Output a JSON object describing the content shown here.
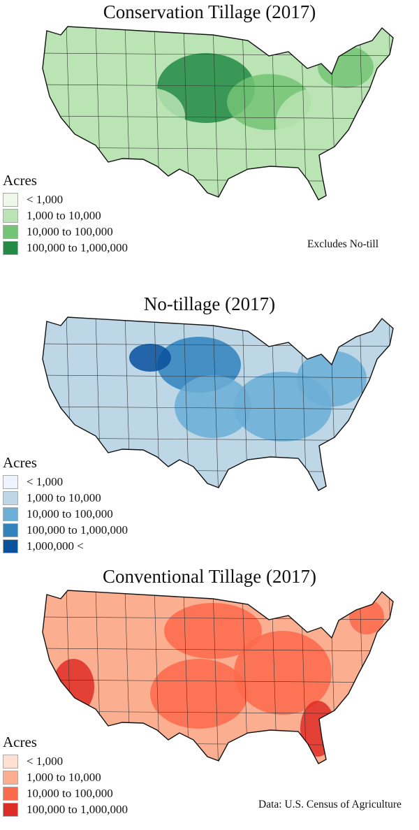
{
  "panels": [
    {
      "title": "Conservation Tillage (2017)",
      "legend_title": "Acres",
      "classes": [
        {
          "label": "< 1,000",
          "color": "#edf8e9"
        },
        {
          "label": "1,000 to 10,000",
          "color": "#bae4b3"
        },
        {
          "label": "10,000 to 100,000",
          "color": "#74c476"
        },
        {
          "label": "100,000 to 1,000,000",
          "color": "#238b45"
        }
      ],
      "note": "Excludes No-till"
    },
    {
      "title": "No-tillage (2017)",
      "legend_title": "Acres",
      "classes": [
        {
          "label": "< 1,000",
          "color": "#eff3ff"
        },
        {
          "label": "1,000 to 10,000",
          "color": "#bdd7e7"
        },
        {
          "label": "10,000 to 100,000",
          "color": "#6baed6"
        },
        {
          "label": "100,000 to 1,000,000",
          "color": "#3182bd"
        },
        {
          "label": "1,000,000 <",
          "color": "#08519c"
        }
      ]
    },
    {
      "title": "Conventional Tillage (2017)",
      "legend_title": "Acres",
      "classes": [
        {
          "label": "< 1,000",
          "color": "#fee0d2"
        },
        {
          "label": "1,000 to 10,000",
          "color": "#fcae91"
        },
        {
          "label": "10,000 to 100,000",
          "color": "#fb6a4a"
        },
        {
          "label": "100,000 to 1,000,000",
          "color": "#de2d26"
        }
      ],
      "note": "Data: U.S. Census of Agriculture"
    }
  ]
}
